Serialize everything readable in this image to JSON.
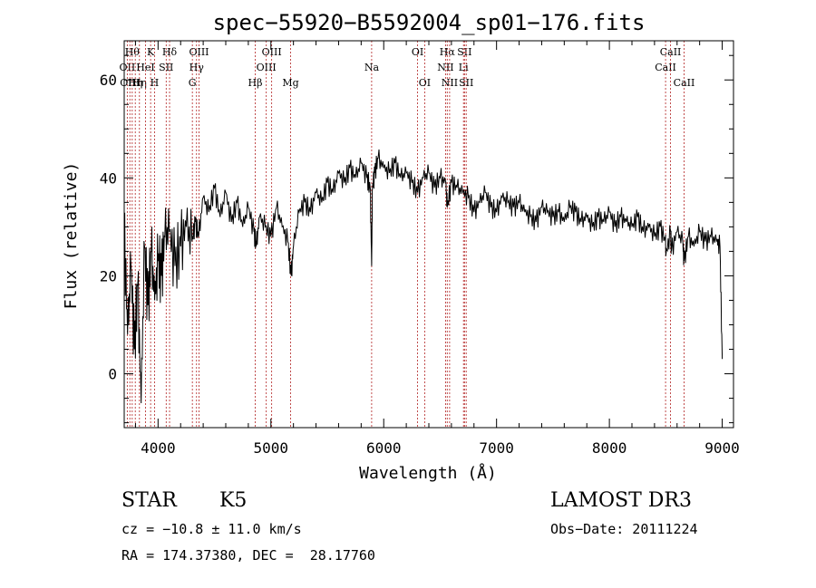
{
  "chart_data": {
    "type": "line",
    "title": "spec−55920−B5592004_sp01−176.fits",
    "xlabel": "Wavelength (Å)",
    "ylabel": "Flux (relative)",
    "xlim": [
      3700,
      9100
    ],
    "ylim": [
      -11,
      68
    ],
    "x_ticks": [
      4000,
      5000,
      6000,
      7000,
      8000,
      9000
    ],
    "y_ticks": [
      0,
      20,
      40,
      60
    ],
    "y_tick_labels": [
      "0",
      "20",
      "40",
      "60"
    ],
    "series": [
      {
        "name": "flux",
        "x": [
          3700,
          3730,
          3760,
          3790,
          3820,
          3850,
          3880,
          3910,
          3940,
          3970,
          4000,
          4030,
          4060,
          4100,
          4150,
          4200,
          4250,
          4300,
          4330,
          4360,
          4400,
          4450,
          4500,
          4550,
          4600,
          4650,
          4700,
          4750,
          4800,
          4850,
          4870,
          4900,
          4950,
          5000,
          5050,
          5100,
          5150,
          5180,
          5200,
          5250,
          5300,
          5350,
          5400,
          5450,
          5500,
          5550,
          5600,
          5650,
          5700,
          5750,
          5800,
          5850,
          5880,
          5893,
          5900,
          5920,
          5950,
          6000,
          6050,
          6100,
          6150,
          6200,
          6250,
          6300,
          6350,
          6400,
          6450,
          6500,
          6550,
          6563,
          6600,
          6650,
          6700,
          6750,
          6800,
          6850,
          6900,
          6950,
          7000,
          7050,
          7100,
          7150,
          7200,
          7250,
          7300,
          7350,
          7400,
          7450,
          7500,
          7550,
          7600,
          7650,
          7700,
          7750,
          7800,
          7850,
          7900,
          7950,
          8000,
          8050,
          8100,
          8150,
          8200,
          8250,
          8300,
          8350,
          8400,
          8450,
          8498,
          8500,
          8542,
          8550,
          8600,
          8650,
          8662,
          8700,
          8750,
          8800,
          8850,
          8900,
          8950,
          8980,
          9000
        ],
        "y": [
          30,
          8,
          22,
          5,
          18,
          -6,
          26,
          14,
          25,
          15,
          23,
          20,
          28,
          29,
          22,
          26,
          30,
          27,
          31,
          28,
          36,
          33,
          38,
          32,
          37,
          31,
          35,
          30,
          34,
          29,
          26,
          32,
          30,
          28,
          34,
          30,
          27,
          20,
          26,
          33,
          35,
          33,
          37,
          35,
          39,
          37,
          41,
          39,
          42,
          40,
          43,
          40,
          38,
          22,
          38,
          41,
          44,
          42,
          41,
          43,
          40,
          41,
          39,
          37,
          40,
          41,
          38,
          40,
          39,
          34,
          39,
          38,
          37,
          36,
          33,
          35,
          37,
          34,
          33,
          36,
          35,
          34,
          35,
          33,
          32,
          31,
          34,
          33,
          32,
          33,
          31,
          34,
          33,
          31,
          32,
          30,
          32,
          31,
          33,
          30,
          32,
          31,
          30,
          32,
          29,
          30,
          28,
          30,
          27,
          24,
          29,
          25,
          29,
          27,
          23,
          28,
          26,
          29,
          27,
          28,
          27,
          26,
          3
        ]
      }
    ],
    "lines": [
      {
        "wl": 3727,
        "label": "OII",
        "row": 1
      },
      {
        "wl": 3750,
        "label": "OIII",
        "row": 2
      },
      {
        "wl": 3771,
        "label": "Hθ",
        "row": 0
      },
      {
        "wl": 3798,
        "label": "Hη",
        "row": 2
      },
      {
        "wl": 3835,
        "label": "Hη",
        "row": 2
      },
      {
        "wl": 3889,
        "label": "HeI",
        "row": 1
      },
      {
        "wl": 3934,
        "label": "K",
        "row": 0
      },
      {
        "wl": 3969,
        "label": "H",
        "row": 2
      },
      {
        "wl": 4072,
        "label": "SII",
        "row": 1
      },
      {
        "wl": 4102,
        "label": "Hδ",
        "row": 0
      },
      {
        "wl": 4304,
        "label": "G",
        "row": 2
      },
      {
        "wl": 4341,
        "label": "Hγ",
        "row": 1
      },
      {
        "wl": 4363,
        "label": "OIII",
        "row": 0
      },
      {
        "wl": 4861,
        "label": "Hβ",
        "row": 2
      },
      {
        "wl": 4959,
        "label": "OIII",
        "row": 1
      },
      {
        "wl": 5007,
        "label": "OIII",
        "row": 0
      },
      {
        "wl": 5175,
        "label": "Mg",
        "row": 2
      },
      {
        "wl": 5893,
        "label": "Na",
        "row": 1
      },
      {
        "wl": 6300,
        "label": "OI",
        "row": 0
      },
      {
        "wl": 6363,
        "label": "OI",
        "row": 2
      },
      {
        "wl": 6548,
        "label": "NII",
        "row": 1
      },
      {
        "wl": 6563,
        "label": "Hα",
        "row": 0
      },
      {
        "wl": 6584,
        "label": "NII",
        "row": 2
      },
      {
        "wl": 6707,
        "label": "Li",
        "row": 1
      },
      {
        "wl": 6716,
        "label": "SII",
        "row": 0
      },
      {
        "wl": 6731,
        "label": "SII",
        "row": 2
      },
      {
        "wl": 8498,
        "label": "CaII",
        "row": 1
      },
      {
        "wl": 8542,
        "label": "CaII",
        "row": 0
      },
      {
        "wl": 8662,
        "label": "CaII",
        "row": 2
      }
    ],
    "line_color": "#b22222"
  },
  "info": {
    "object_class": "STAR",
    "subclass": "K5",
    "survey": "LAMOST DR3",
    "redshift": "cz = −10.8 ± 11.0 km/s",
    "obs_date": "Obs−Date: 20111224",
    "coords": "RA = 174.37380, DEC =  28.17760"
  }
}
